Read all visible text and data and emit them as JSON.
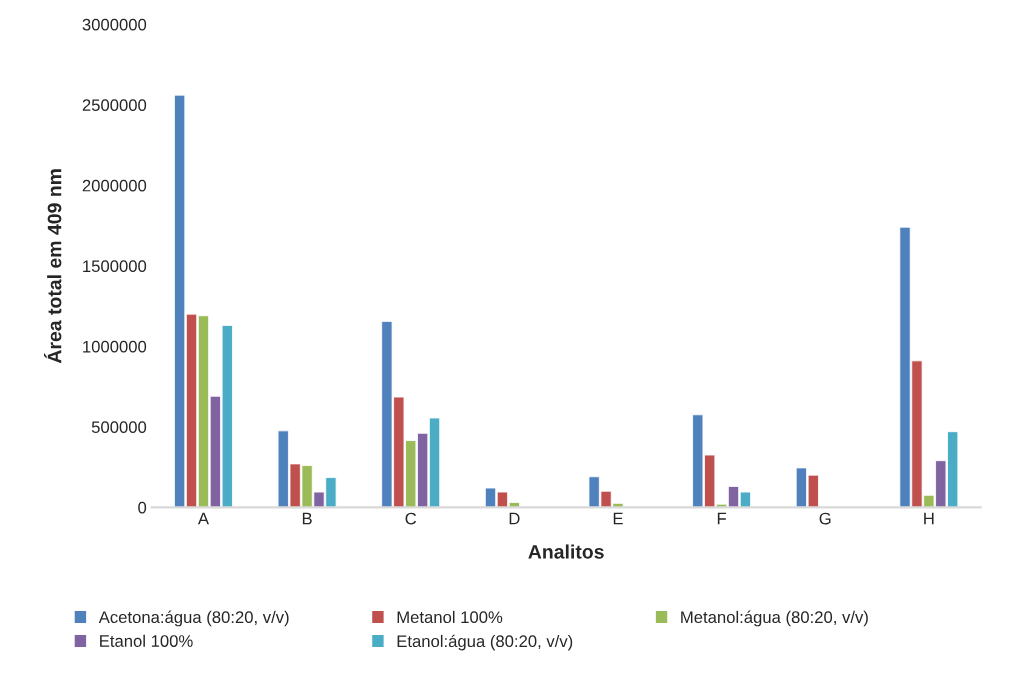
{
  "chart_data": {
    "type": "bar",
    "xlabel": "Analitos",
    "ylabel": "Área total em 409 nm",
    "categories": [
      "A",
      "B",
      "C",
      "D",
      "E",
      "F",
      "G",
      "H"
    ],
    "series": [
      {
        "name": "Acetona:água (80:20, v/v)",
        "color": "#4f81bd",
        "values": [
          2560000,
          475000,
          1155000,
          120000,
          190000,
          575000,
          245000,
          1740000
        ]
      },
      {
        "name": "Metanol 100%",
        "color": "#c0504d",
        "values": [
          1200000,
          270000,
          685000,
          95000,
          100000,
          325000,
          200000,
          910000
        ]
      },
      {
        "name": "Metanol:água (80:20, v/v)",
        "color": "#9bbb59",
        "values": [
          1190000,
          260000,
          415000,
          30000,
          25000,
          20000,
          null,
          75000
        ]
      },
      {
        "name": "Etanol 100%",
        "color": "#8064a2",
        "values": [
          690000,
          95000,
          460000,
          null,
          null,
          130000,
          null,
          290000
        ]
      },
      {
        "name": "Etanol:água (80:20, v/v)",
        "color": "#4bacc6",
        "values": [
          1130000,
          185000,
          555000,
          null,
          null,
          95000,
          null,
          470000
        ]
      }
    ],
    "ylim": [
      0,
      3000000
    ],
    "yticks": [
      0,
      500000,
      1000000,
      1500000,
      2000000,
      2500000,
      3000000
    ],
    "grid": false,
    "legend": "bottom"
  }
}
